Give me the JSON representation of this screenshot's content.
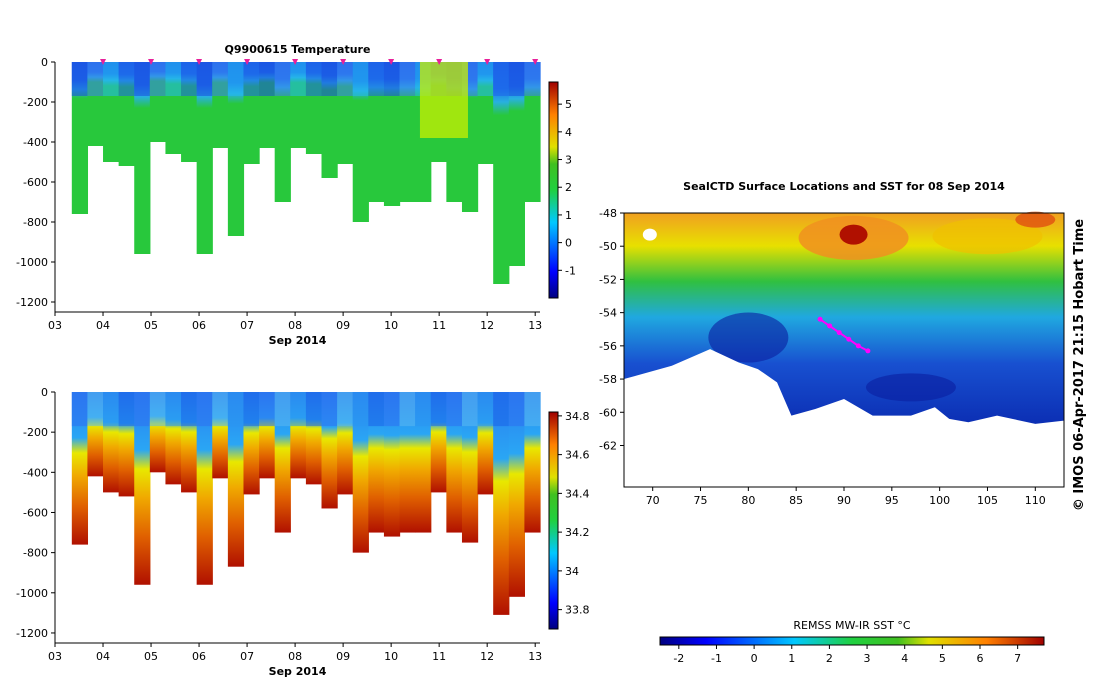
{
  "chart_data": [
    {
      "type": "heatmap",
      "title": "Q9900615  Temperature",
      "xlabel": "Sep 2014",
      "x_ticks": [
        "03",
        "04",
        "05",
        "06",
        "07",
        "08",
        "09",
        "10",
        "11",
        "12",
        "13"
      ],
      "xlim": [
        3,
        13.1
      ],
      "ylim": [
        -1250,
        0
      ],
      "y_ticks": [
        0,
        -200,
        -400,
        -600,
        -800,
        -1000,
        -1200
      ],
      "y_tick_labels": [
        "0",
        "-200",
        "-400",
        "-600",
        "-800",
        "-1000",
        "-1200"
      ],
      "colorbar_ticks": [
        5,
        4,
        3,
        2,
        1,
        0,
        -1
      ],
      "colorbar_tick_labels": [
        "5",
        "4",
        "3",
        "2",
        "1",
        "0",
        "-1"
      ],
      "colorbar_range": [
        -2,
        5.8
      ],
      "profile_markers": [
        4,
        5,
        6,
        7,
        8,
        9,
        10,
        11,
        12,
        13
      ],
      "colors": {
        "marker": "#e8209a"
      }
    },
    {
      "type": "heatmap",
      "title": "",
      "xlabel": "Sep 2014",
      "x_ticks": [
        "03",
        "04",
        "05",
        "06",
        "07",
        "08",
        "09",
        "10",
        "11",
        "12",
        "13"
      ],
      "xlim": [
        3,
        13.1
      ],
      "ylim": [
        -1250,
        0
      ],
      "y_ticks": [
        0,
        -200,
        -400,
        -600,
        -800,
        -1000,
        -1200
      ],
      "y_tick_labels": [
        "0",
        "-200",
        "-400",
        "-600",
        "-800",
        "-1000",
        "-1200"
      ],
      "colorbar_ticks": [
        34.8,
        34.6,
        34.4,
        34.2,
        34,
        33.8
      ],
      "colorbar_tick_labels": [
        "34.8",
        "34.6",
        "34.4",
        "34.2",
        "34",
        "33.8"
      ],
      "colorbar_range": [
        33.7,
        34.82
      ]
    },
    {
      "type": "heatmap",
      "title": "SealCTD Surface Locations and SST for 08 Sep 2014",
      "x_ticks": [
        70,
        75,
        80,
        85,
        90,
        95,
        100,
        105,
        110
      ],
      "x_tick_labels": [
        "70",
        "75",
        "80",
        "85",
        "90",
        "95",
        "100",
        "105",
        "110"
      ],
      "xlim": [
        67,
        113
      ],
      "y_ticks": [
        -48,
        -50,
        -52,
        -54,
        -56,
        -58,
        -60,
        -62
      ],
      "y_tick_labels": [
        "-48",
        "-50",
        "-52",
        "-54",
        "-56",
        "-58",
        "-60",
        "-62"
      ],
      "ylim": [
        -64.5,
        -48
      ],
      "side_label": "© IMOS 06-Apr-2017 21:15 Hobart Time",
      "colorbar_label": "REMSS MW-IR SST °C",
      "colorbar_ticks": [
        -2,
        -1,
        0,
        1,
        2,
        3,
        4,
        5,
        6,
        7
      ],
      "colorbar_tick_labels": [
        "-2",
        "-1",
        "0",
        "1",
        "2",
        "3",
        "4",
        "5",
        "6",
        "7"
      ],
      "colorbar_range": [
        -2.5,
        7.7
      ],
      "track": [
        [
          87.5,
          -54.4
        ],
        [
          88.5,
          -54.8
        ],
        [
          89.5,
          -55.2
        ],
        [
          90.5,
          -55.6
        ],
        [
          91.5,
          -56.0
        ],
        [
          92.5,
          -56.3
        ]
      ],
      "colors": {
        "track": "#ff00ff",
        "land": "#ffffff"
      }
    }
  ]
}
